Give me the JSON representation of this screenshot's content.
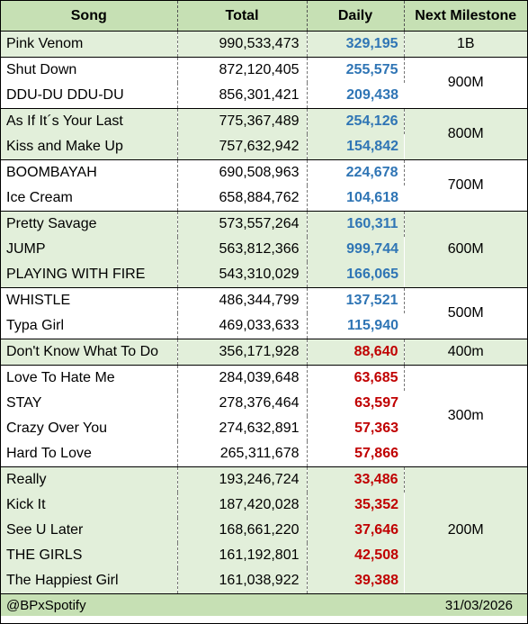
{
  "headers": {
    "song": "Song",
    "total": "Total",
    "daily": "Daily",
    "milestone": "Next Milestone"
  },
  "colors": {
    "header_bg": "#c6e0b4",
    "band_green": "#e2efda",
    "band_white": "#ffffff",
    "daily_blue": "#2f75b5",
    "daily_red": "#c00000"
  },
  "rows": [
    {
      "song": "Pink Venom",
      "total": "990,533,473",
      "daily": "329,195",
      "daily_color": "blue",
      "milestone": "1B"
    },
    {
      "song": "Shut Down",
      "total": "872,120,405",
      "daily": "255,575",
      "daily_color": "blue",
      "milestone": "900M"
    },
    {
      "song": "DDU-DU DDU-DU",
      "total": "856,301,421",
      "daily": "209,438",
      "daily_color": "blue",
      "milestone": "900M"
    },
    {
      "song": "As If It´s Your Last",
      "total": "775,367,489",
      "daily": "254,126",
      "daily_color": "blue",
      "milestone": "800M"
    },
    {
      "song": "Kiss and Make Up",
      "total": "757,632,942",
      "daily": "154,842",
      "daily_color": "blue",
      "milestone": "800M"
    },
    {
      "song": "BOOMBAYAH",
      "total": "690,508,963",
      "daily": "224,678",
      "daily_color": "blue",
      "milestone": "700M"
    },
    {
      "song": "Ice Cream",
      "total": "658,884,762",
      "daily": "104,618",
      "daily_color": "blue",
      "milestone": "700M"
    },
    {
      "song": "Pretty Savage",
      "total": "573,557,264",
      "daily": "160,311",
      "daily_color": "blue",
      "milestone": "600M"
    },
    {
      "song": "JUMP",
      "total": "563,812,366",
      "daily": "999,744",
      "daily_color": "blue",
      "milestone": "600M"
    },
    {
      "song": "PLAYING WITH FIRE",
      "total": "543,310,029",
      "daily": "166,065",
      "daily_color": "blue",
      "milestone": "600M"
    },
    {
      "song": "WHISTLE",
      "total": "486,344,799",
      "daily": "137,521",
      "daily_color": "blue",
      "milestone": "500M"
    },
    {
      "song": "Typa Girl",
      "total": "469,033,633",
      "daily": "115,940",
      "daily_color": "blue",
      "milestone": "500M"
    },
    {
      "song": "Don't Know What To Do",
      "total": "356,171,928",
      "daily": "88,640",
      "daily_color": "red",
      "milestone": "400m"
    },
    {
      "song": "Love To Hate Me",
      "total": "284,039,648",
      "daily": "63,685",
      "daily_color": "red",
      "milestone": "300m"
    },
    {
      "song": "STAY",
      "total": "278,376,464",
      "daily": "63,597",
      "daily_color": "red",
      "milestone": "300m"
    },
    {
      "song": "Crazy Over You",
      "total": "274,632,891",
      "daily": "57,363",
      "daily_color": "red",
      "milestone": "300m"
    },
    {
      "song": "Hard To Love",
      "total": "265,311,678",
      "daily": "57,866",
      "daily_color": "red",
      "milestone": "300m"
    },
    {
      "song": "Really",
      "total": "193,246,724",
      "daily": "33,486",
      "daily_color": "red",
      "milestone": "200M"
    },
    {
      "song": "Kick It",
      "total": "187,420,028",
      "daily": "35,352",
      "daily_color": "red",
      "milestone": "200M"
    },
    {
      "song": "See U Later",
      "total": "168,661,220",
      "daily": "37,646",
      "daily_color": "red",
      "milestone": "200M"
    },
    {
      "song": "THE GIRLS",
      "total": "161,192,801",
      "daily": "42,508",
      "daily_color": "red",
      "milestone": "200M"
    },
    {
      "song": "The Happiest Girl",
      "total": "161,038,922",
      "daily": "39,388",
      "daily_color": "red",
      "milestone": "200M"
    }
  ],
  "footer": {
    "handle": "@BPxSpotify",
    "date": "31/03/2026"
  }
}
